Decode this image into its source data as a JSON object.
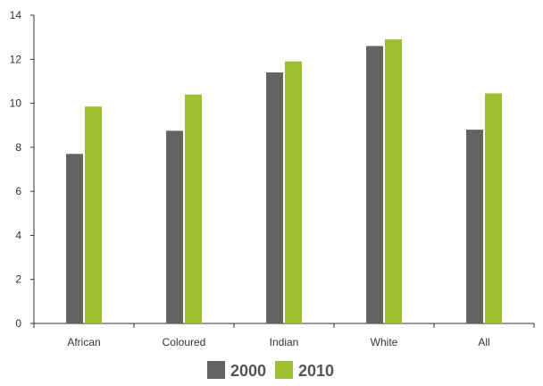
{
  "chart_data": {
    "type": "bar",
    "title": "",
    "xlabel": "",
    "ylabel": "",
    "categories": [
      "African",
      "Coloured",
      "Indian",
      "White",
      "All"
    ],
    "series": [
      {
        "name": "2000",
        "color": "#636363",
        "values": [
          7.7,
          8.75,
          11.4,
          12.6,
          8.8
        ]
      },
      {
        "name": "2010",
        "color": "#9dc030",
        "values": [
          9.85,
          10.4,
          11.9,
          12.9,
          10.45
        ]
      }
    ],
    "ylim": [
      0,
      14
    ],
    "yticks": [
      0,
      2,
      4,
      6,
      8,
      10,
      12,
      14
    ],
    "grid": false,
    "legend_position": "bottom-center"
  }
}
